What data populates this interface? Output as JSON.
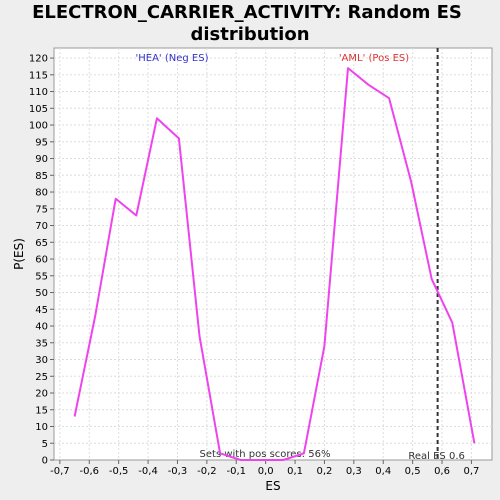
{
  "chart_data": {
    "type": "line",
    "title": "ELECTRON_CARRIER_ACTIVITY: Random ES distribution",
    "title_lines": [
      "ELECTRON_CARRIER_ACTIVITY: Random ES",
      "distribution"
    ],
    "xlabel": "ES",
    "ylabel": "P(ES)",
    "xlim": [
      -0.72,
      0.77
    ],
    "ylim": [
      0,
      123
    ],
    "x_ticks": [
      -0.7,
      -0.6,
      -0.5,
      -0.4,
      -0.3,
      -0.2,
      -0.1,
      0.0,
      0.1,
      0.2,
      0.3,
      0.4,
      0.5,
      0.6,
      0.7
    ],
    "x_tick_labels": [
      "-0,7",
      "-0,6",
      "-0,5",
      "-0,4",
      "-0,3",
      "-0,2",
      "-0,1",
      "0,0",
      "0,1",
      "0,2",
      "0,3",
      "0,4",
      "0,5",
      "0,6",
      "0,7"
    ],
    "y_ticks": [
      0,
      5,
      10,
      15,
      20,
      25,
      30,
      35,
      40,
      45,
      50,
      55,
      60,
      65,
      70,
      75,
      80,
      85,
      90,
      95,
      100,
      105,
      110,
      115,
      120
    ],
    "grid": true,
    "series": [
      {
        "color": "#ee44ee",
        "x": [
          -0.65,
          -0.58,
          -0.51,
          -0.44,
          -0.37,
          -0.295,
          -0.225,
          -0.155,
          -0.085,
          -0.01,
          0.06,
          0.13,
          0.2,
          0.28,
          0.35,
          0.42,
          0.495,
          0.565,
          0.635,
          0.71
        ],
        "y": [
          13,
          43,
          78,
          73,
          102,
          96,
          37,
          2,
          0,
          0,
          0,
          2,
          34,
          117,
          112,
          108,
          83,
          54,
          41,
          5
        ]
      }
    ],
    "reference_line": {
      "x": 0.585,
      "label": "Real ES 0.6",
      "color": "#333333"
    },
    "annotations": {
      "neg_label": "'HEA' (Neg ES)",
      "neg_color": "#3333cc",
      "pos_label": "'AML' (Pos ES)",
      "pos_color": "#dd3333",
      "sets_label": "Sets with pos scores: 56%"
    }
  }
}
